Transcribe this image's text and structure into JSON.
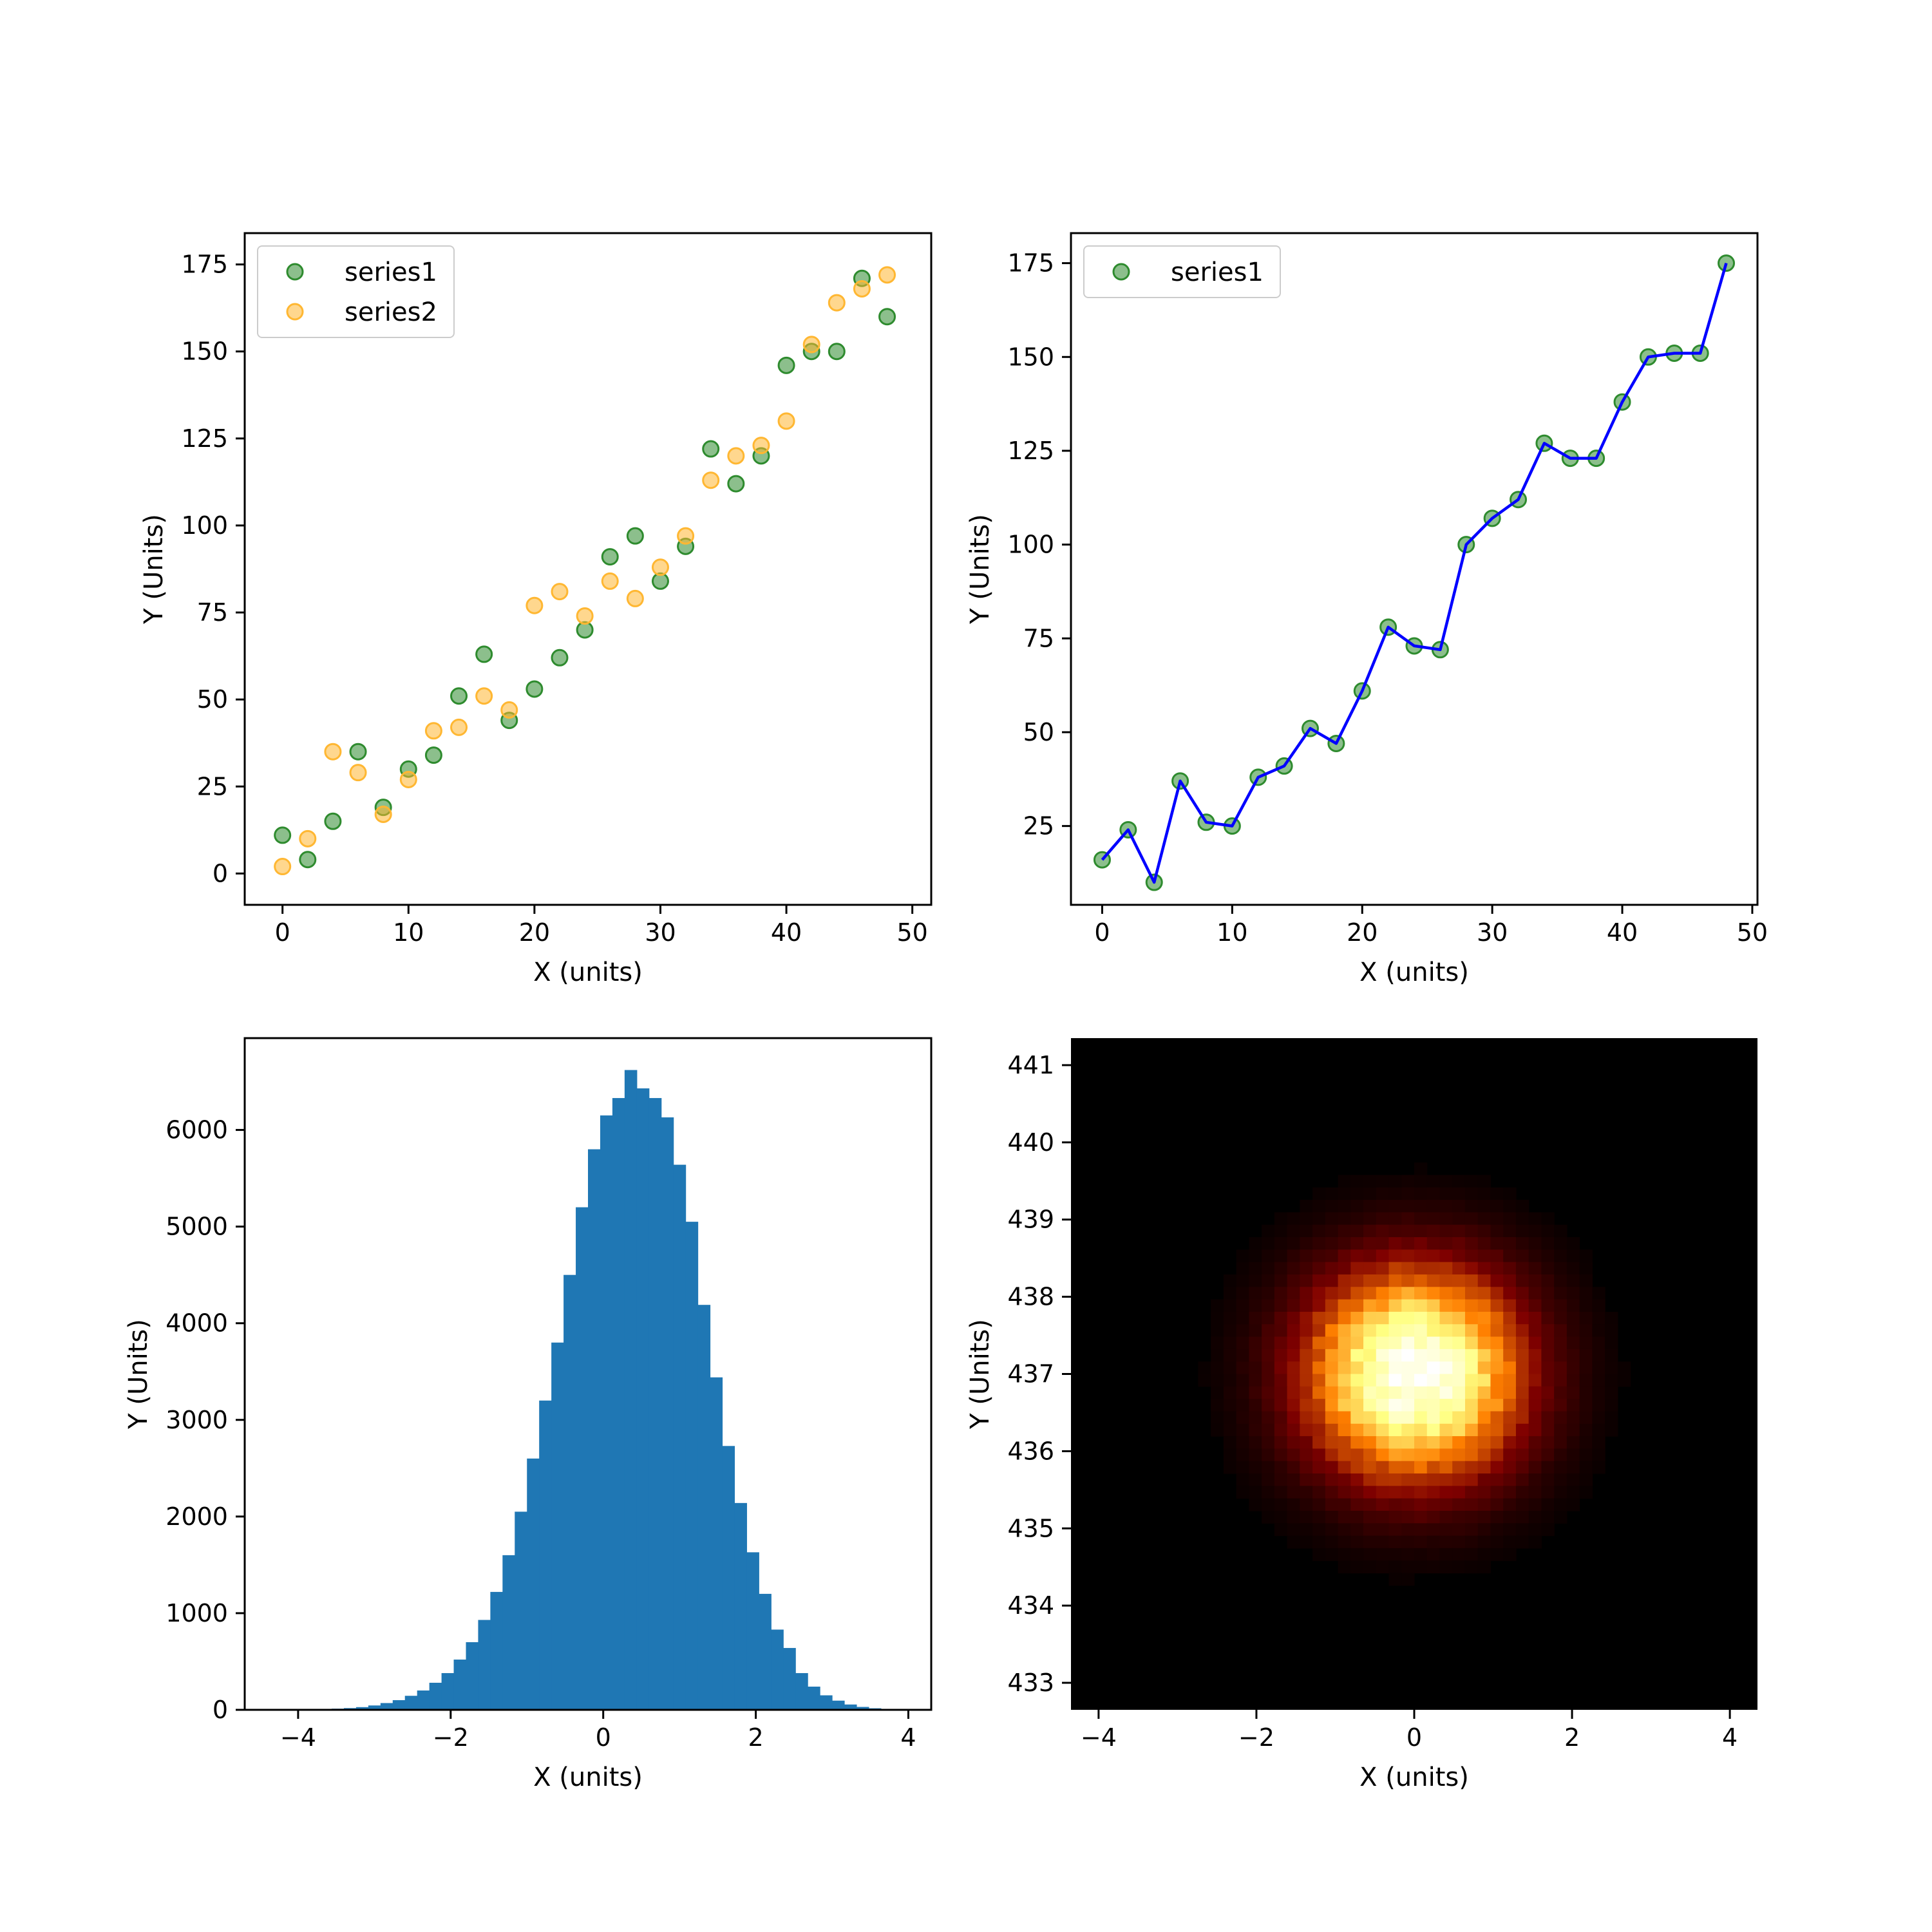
{
  "colors": {
    "series1": "#2e8b2e",
    "series2": "#ffb732",
    "line": "#0000ff",
    "histogram": "#1f77b4",
    "heatmap_cmap": "afmhot"
  },
  "chart_data": [
    {
      "type": "scatter",
      "xlabel": "X (units)",
      "ylabel": "Y (Units)",
      "xlim": [
        -3,
        51.5
      ],
      "ylim": [
        -9,
        184
      ],
      "xticks": [
        0,
        10,
        20,
        30,
        40,
        50
      ],
      "yticks": [
        0,
        25,
        50,
        75,
        100,
        125,
        150,
        175
      ],
      "legend_placement": "upper-left",
      "grid": false,
      "x": [
        0,
        2,
        4,
        6,
        8,
        10,
        12,
        14,
        16,
        18,
        20,
        22,
        24,
        26,
        28,
        30,
        32,
        34,
        36,
        38,
        40,
        42,
        44,
        46,
        48
      ],
      "series": [
        {
          "name": "series1",
          "color": "#2e8b2e",
          "values": [
            11,
            4,
            15,
            35,
            19,
            30,
            34,
            51,
            63,
            44,
            53,
            62,
            70,
            91,
            97,
            84,
            94,
            122,
            112,
            120,
            146,
            150,
            150,
            171,
            160
          ]
        },
        {
          "name": "series2",
          "color": "#ffb732",
          "values": [
            2,
            10,
            35,
            29,
            17,
            27,
            41,
            42,
            51,
            47,
            77,
            81,
            74,
            84,
            79,
            88,
            97,
            113,
            120,
            123,
            130,
            152,
            164,
            168,
            172
          ]
        }
      ]
    },
    {
      "type": "line",
      "xlabel": "X (units)",
      "ylabel": "Y (Units)",
      "xlim": [
        -2.4,
        50.4
      ],
      "ylim": [
        4,
        183
      ],
      "xticks": [
        0,
        10,
        20,
        30,
        40,
        50
      ],
      "yticks": [
        25,
        50,
        75,
        100,
        125,
        150,
        175
      ],
      "legend_placement": "upper-left",
      "grid": false,
      "x": [
        0,
        2,
        4,
        6,
        8,
        10,
        12,
        14,
        16,
        18,
        20,
        22,
        24,
        26,
        28,
        30,
        32,
        34,
        36,
        38,
        40,
        42,
        44,
        46,
        48
      ],
      "series": [
        {
          "name": "series1",
          "marker_color": "#2e8b2e",
          "line_color": "#0000ff",
          "values": [
            16,
            24,
            10,
            37,
            26,
            25,
            38,
            41,
            51,
            47,
            61,
            78,
            73,
            72,
            100,
            107,
            112,
            127,
            123,
            123,
            138,
            150,
            151,
            151,
            175
          ]
        }
      ]
    },
    {
      "type": "bar",
      "subtype": "histogram",
      "xlabel": "X (units)",
      "ylabel": "Y (Units)",
      "xlim": [
        -4.7,
        4.3
      ],
      "ylim": [
        0,
        6950
      ],
      "xticks": [
        -4,
        -2,
        0,
        2,
        4
      ],
      "yticks": [
        0,
        1000,
        2000,
        3000,
        4000,
        5000,
        6000
      ],
      "bin_edges_range": [
        -4.2,
        3.8
      ],
      "bin_width": 0.16,
      "values": [
        2,
        3,
        5,
        8,
        12,
        18,
        28,
        45,
        70,
        100,
        145,
        200,
        280,
        380,
        520,
        700,
        930,
        1220,
        1600,
        2050,
        2600,
        3200,
        3800,
        4500,
        5200,
        5800,
        6150,
        6330,
        6620,
        6430,
        6330,
        6130,
        5640,
        5050,
        4190,
        3440,
        2730,
        2140,
        1630,
        1200,
        830,
        640,
        380,
        240,
        150,
        95,
        55,
        30,
        16,
        8
      ]
    },
    {
      "type": "heatmap",
      "colormap": "afmhot",
      "xlabel": "X (units)",
      "ylabel": "Y (Units)",
      "xlim": [
        -4.35,
        4.35
      ],
      "ylim": [
        432.65,
        441.35
      ],
      "xticks": [
        -4,
        -2,
        0,
        2,
        4
      ],
      "yticks": [
        433,
        434,
        435,
        436,
        437,
        438,
        439,
        440,
        441
      ],
      "grid_cells": 54,
      "center": [
        0,
        437
      ],
      "spread_sigma": 0.95
    }
  ]
}
